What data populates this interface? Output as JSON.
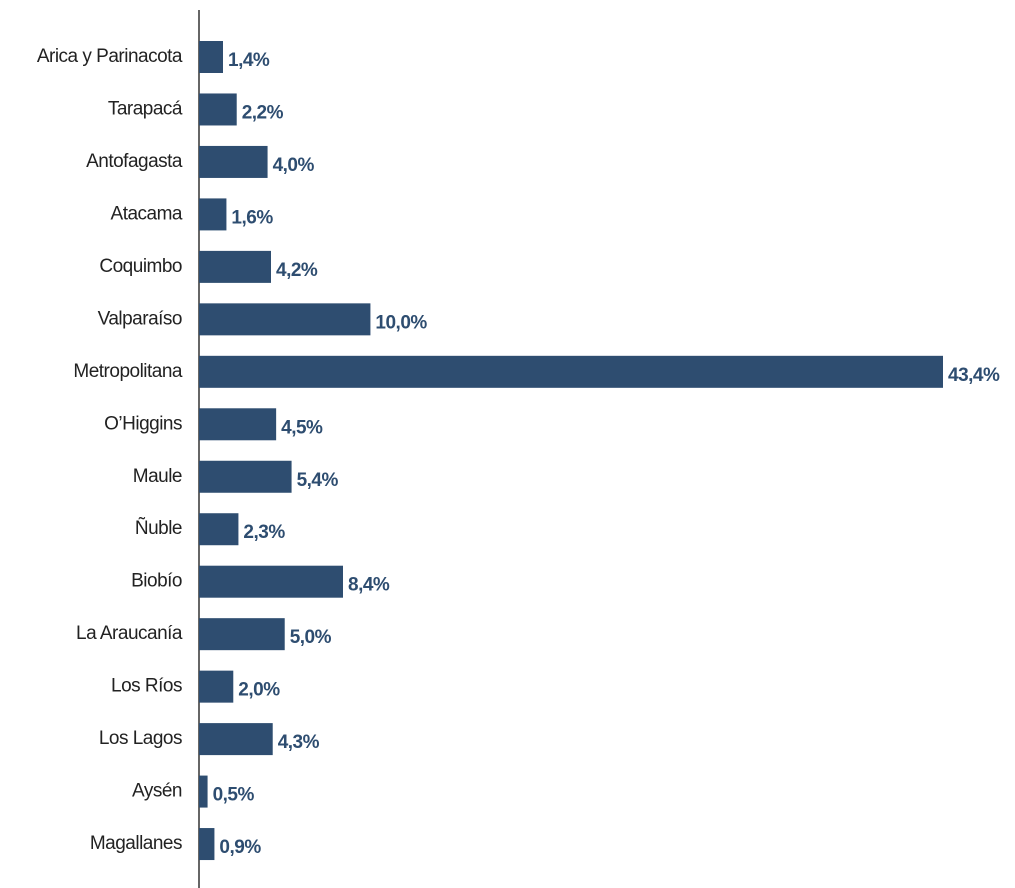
{
  "chart_data": {
    "type": "bar",
    "orientation": "horizontal",
    "categories": [
      "Arica y Parinacota",
      "Tarapacá",
      "Antofagasta",
      "Atacama",
      "Coquimbo",
      "Valparaíso",
      "Metropolitana",
      "O’Higgins",
      "Maule",
      "Ñuble",
      "Biobío",
      "La Araucanía",
      "Los Ríos",
      "Los Lagos",
      "Aysén",
      "Magallanes"
    ],
    "values": [
      1.4,
      2.2,
      4.0,
      1.6,
      4.2,
      10.0,
      43.4,
      4.5,
      5.4,
      2.3,
      8.4,
      5.0,
      2.0,
      4.3,
      0.5,
      0.9
    ],
    "value_labels": [
      "1,4%",
      "2,2%",
      "4,0%",
      "1,6%",
      "4,2%",
      "10,0%",
      "43,4%",
      "4,5%",
      "5,4%",
      "2,3%",
      "8,4%",
      "5,0%",
      "2,0%",
      "4,3%",
      "0,5%",
      "0,9%"
    ],
    "color": "#2e4d70"
  }
}
